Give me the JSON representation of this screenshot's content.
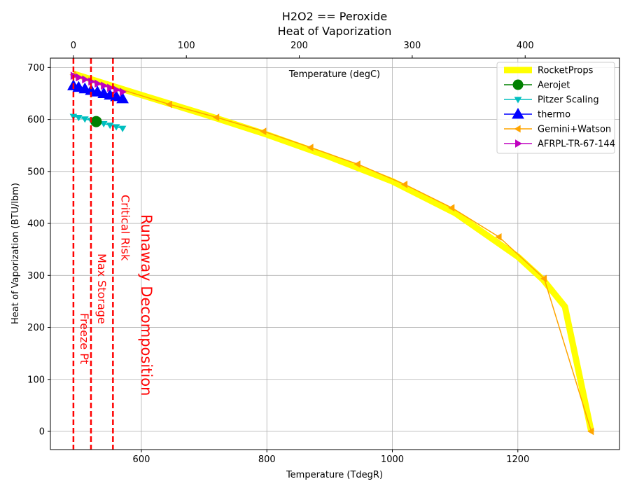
{
  "chart_data": {
    "type": "line",
    "title": "H2O2 == Peroxide",
    "subtitle": "Heat of Vaporization",
    "xlabel": "Temperature (TdegR)",
    "ylabel": "Heat of Vaporization (BTU/lbm)",
    "x2label": "Temperature (degC)",
    "xlim": [
      455,
      1362
    ],
    "ylim": [
      -35,
      718
    ],
    "x_ticks": [
      600,
      800,
      1000,
      1200
    ],
    "y_ticks": [
      0,
      100,
      200,
      300,
      400,
      500,
      600,
      700
    ],
    "x2_ticks": [
      0,
      100,
      200,
      300,
      400
    ],
    "grid": true,
    "legend_position": "top-right",
    "colors": {
      "rocketprops": "#ffff00",
      "aerojet": "#008000",
      "pitzer": "#00bfbf",
      "thermo": "#0000ff",
      "gemini": "#ffa500",
      "afrpl": "#bf00bf",
      "vlines": "#ff0000"
    },
    "series": [
      {
        "name": "RocketProps",
        "x": [
          491.7,
          600,
          700,
          800,
          900,
          1000,
          1100,
          1200,
          1240,
          1275,
          1317
        ],
        "y": [
          688,
          647,
          610,
          571,
          528,
          481,
          420,
          336,
          292,
          240,
          0
        ]
      },
      {
        "name": "Aerojet",
        "x": [
          528
        ],
        "y": [
          596
        ]
      },
      {
        "name": "Pitzer Scaling",
        "x": [
          491.7,
          500,
          510,
          520,
          530,
          540,
          550,
          560,
          570
        ],
        "y": [
          606,
          604,
          601,
          598,
          595,
          592,
          589,
          586,
          583
        ]
      },
      {
        "name": "thermo",
        "x": [
          491.7,
          500,
          510,
          520,
          530,
          540,
          550,
          560,
          570
        ],
        "y": [
          665,
          662,
          659,
          656,
          653,
          650,
          647,
          644,
          640
        ]
      },
      {
        "name": "Gemini+Watson",
        "x": [
          491.7,
          645,
          720,
          795,
          870,
          945,
          1020,
          1095,
          1170,
          1242,
          1317
        ],
        "y": [
          686,
          629,
          604,
          577,
          546,
          514,
          475,
          430,
          374,
          294,
          0
        ]
      },
      {
        "name": "AFRPL-TR-67-144",
        "x": [
          491.7,
          500,
          510,
          520,
          530,
          540,
          550,
          560,
          570
        ],
        "y": [
          684,
          681,
          677,
          673,
          669,
          665,
          661,
          657,
          653
        ]
      }
    ],
    "vertical_lines": [
      {
        "x": 491.7,
        "label": "Freeze Pt"
      },
      {
        "x": 519.67,
        "label": "Max Storage"
      },
      {
        "x": 554.67,
        "label": "Critical Risk"
      },
      {
        "x": 600,
        "label": "Runaway Decomposition"
      }
    ]
  }
}
